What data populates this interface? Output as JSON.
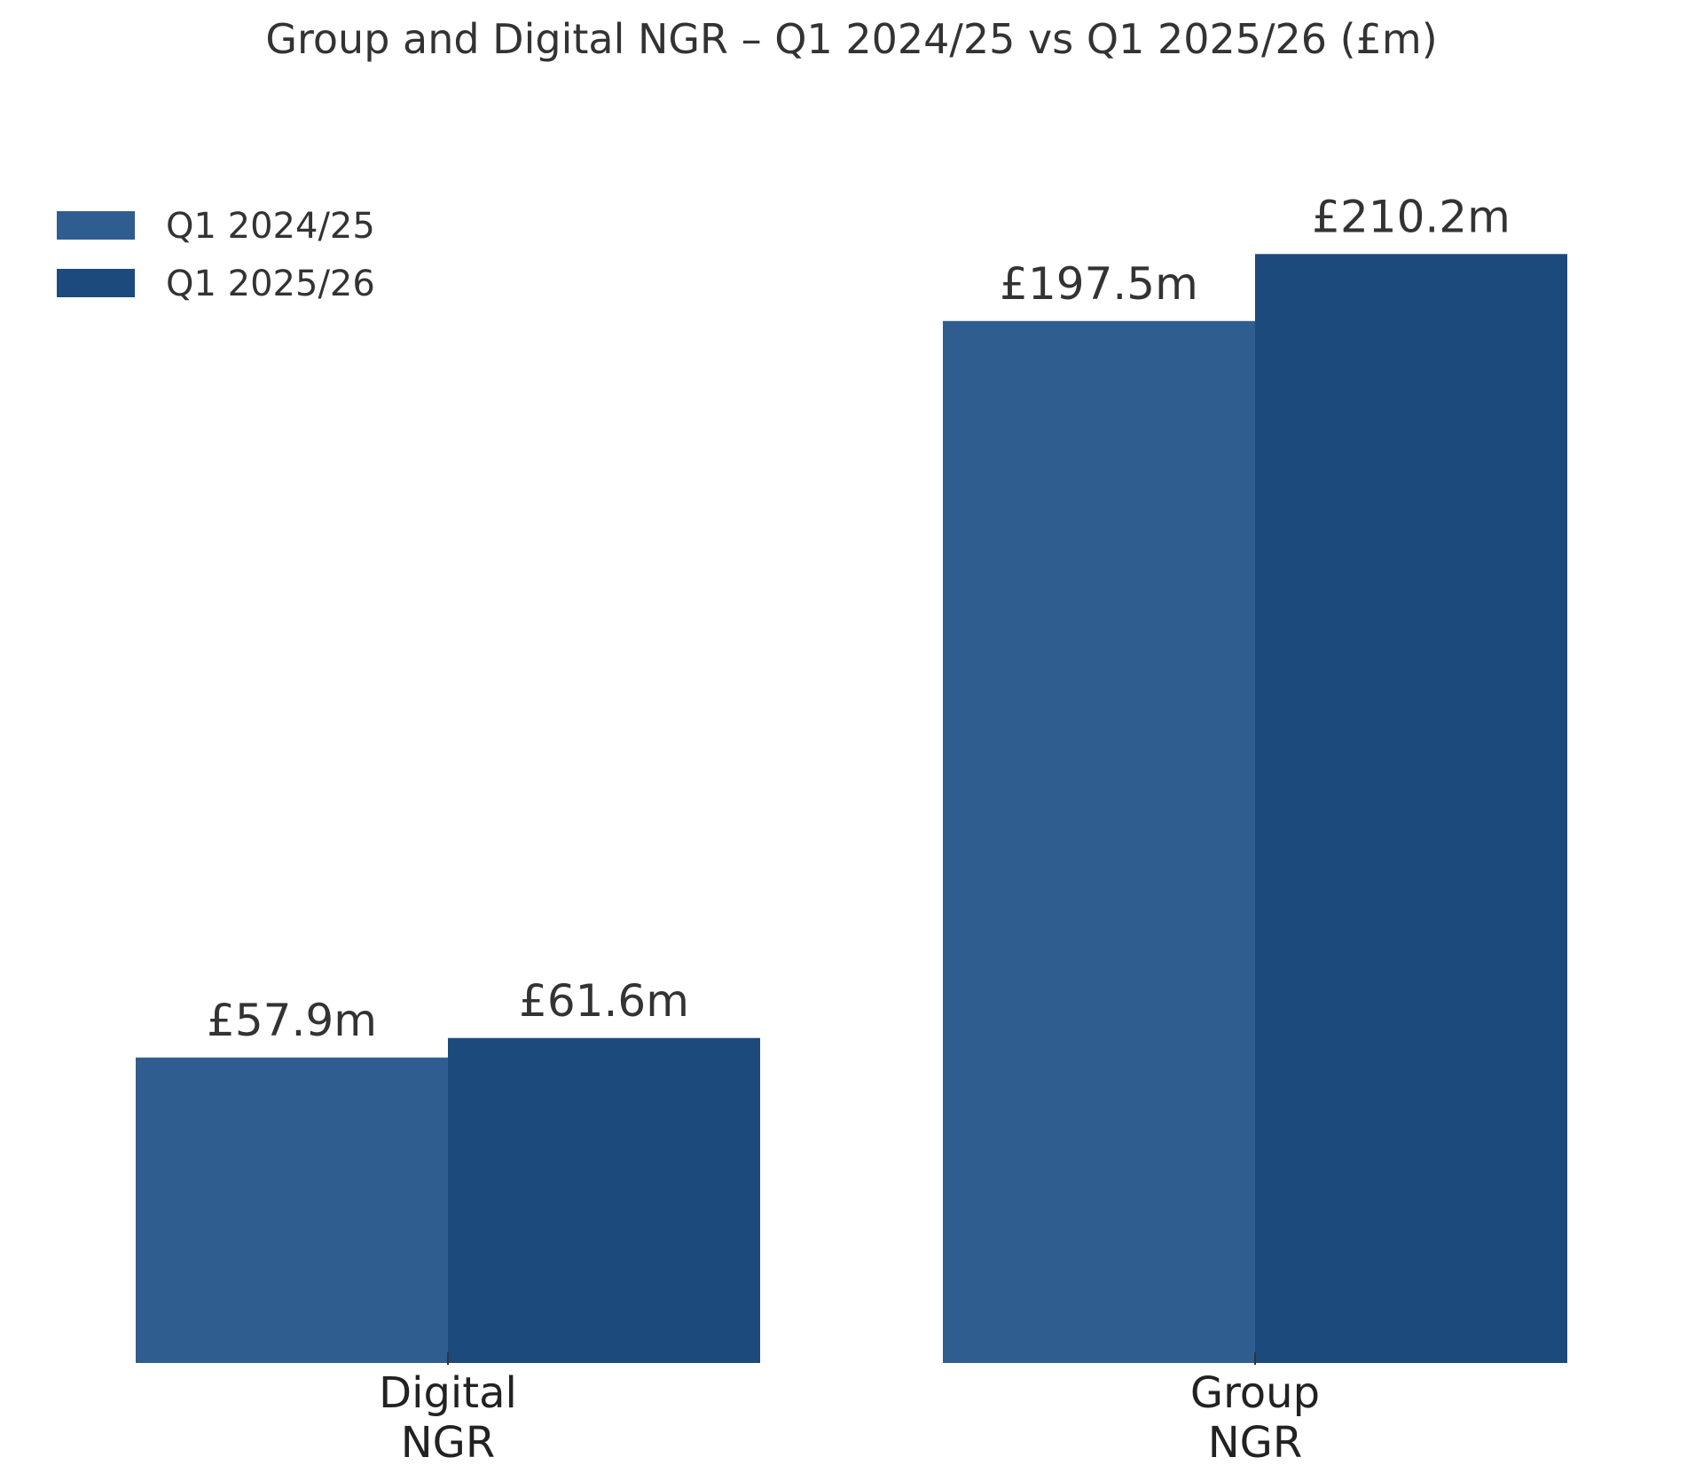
{
  "chart_data": {
    "type": "bar",
    "title": "Group and Digital NGR – Q1 2024/25 vs Q1 2025/26 (£m)",
    "xlabel": "",
    "ylabel": "",
    "categories": [
      [
        "Digital",
        "NGR"
      ],
      [
        "Group",
        "NGR"
      ]
    ],
    "series": [
      {
        "name": "Q1 2024/25",
        "values": [
          57.9,
          197.5
        ],
        "labels": [
          "£57.9m",
          "£197.5m"
        ],
        "color": "#2f5d8f"
      },
      {
        "name": "Q1 2025/26",
        "values": [
          61.6,
          210.2
        ],
        "labels": [
          "£61.6m",
          "£210.2m"
        ],
        "color": "#1c4a7c"
      }
    ],
    "ylim": [
      0,
      220
    ],
    "grid": false,
    "legend_position": "top-left",
    "y_axis_visible": false
  }
}
